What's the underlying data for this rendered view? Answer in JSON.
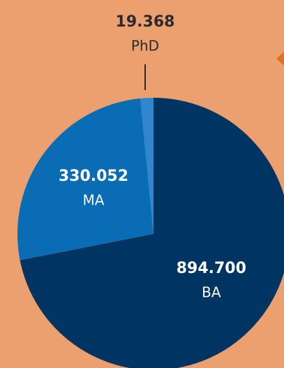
{
  "chart_data": {
    "type": "pie",
    "categories": [
      "BA",
      "MA",
      "PhD"
    ],
    "values": [
      894700,
      330052,
      19368
    ],
    "value_labels": [
      "894.700",
      "330.052",
      "19.368"
    ],
    "colors": [
      "#003462",
      "#0a6cb4",
      "#2f86cf"
    ]
  }
}
